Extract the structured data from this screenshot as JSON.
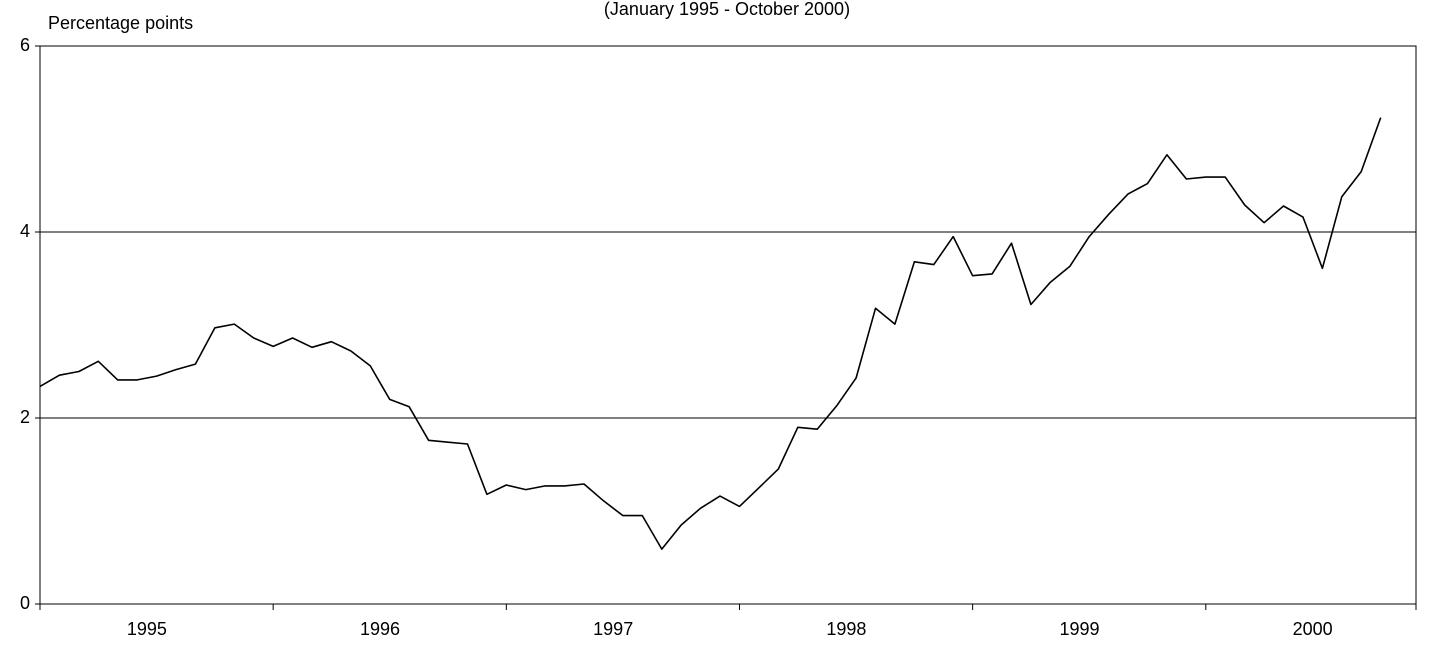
{
  "chart_data": {
    "type": "line",
    "subtitle": "(January 1995 - October 2000)",
    "ylabel": "Percentage points",
    "categories": [
      null,
      null,
      null,
      null,
      null,
      "1995",
      null,
      null,
      null,
      null,
      null,
      null,
      null,
      null,
      null,
      null,
      null,
      "1996",
      null,
      null,
      null,
      null,
      null,
      null,
      null,
      null,
      null,
      null,
      null,
      "1997",
      null,
      null,
      null,
      null,
      null,
      null,
      null,
      null,
      null,
      null,
      null,
      "1998",
      null,
      null,
      null,
      null,
      null,
      null,
      null,
      null,
      null,
      null,
      null,
      "1999",
      null,
      null,
      null,
      null,
      null,
      null,
      null,
      null,
      null,
      null,
      null,
      "2000",
      null,
      null,
      null,
      null
    ],
    "values": [
      2.34,
      2.46,
      2.5,
      2.61,
      2.41,
      2.41,
      2.45,
      2.52,
      2.58,
      2.97,
      3.01,
      2.86,
      2.77,
      2.86,
      2.76,
      2.82,
      2.72,
      2.56,
      2.2,
      2.12,
      1.76,
      1.74,
      1.72,
      1.18,
      1.28,
      1.23,
      1.27,
      1.27,
      1.29,
      1.11,
      0.95,
      0.95,
      0.59,
      0.85,
      1.03,
      1.16,
      1.05,
      1.25,
      1.45,
      1.9,
      1.88,
      2.13,
      2.43,
      3.18,
      3.01,
      3.68,
      3.65,
      3.95,
      3.53,
      3.55,
      3.88,
      3.22,
      3.46,
      3.63,
      3.95,
      4.19,
      4.41,
      4.52,
      4.83,
      4.57,
      4.59,
      4.59,
      4.29,
      4.1,
      4.28,
      4.16,
      3.61,
      4.38,
      4.65,
      5.23
    ],
    "color": "#000000",
    "ylim": [
      0,
      6
    ],
    "yticks": [
      0,
      2,
      4,
      6
    ],
    "grid": true
  }
}
